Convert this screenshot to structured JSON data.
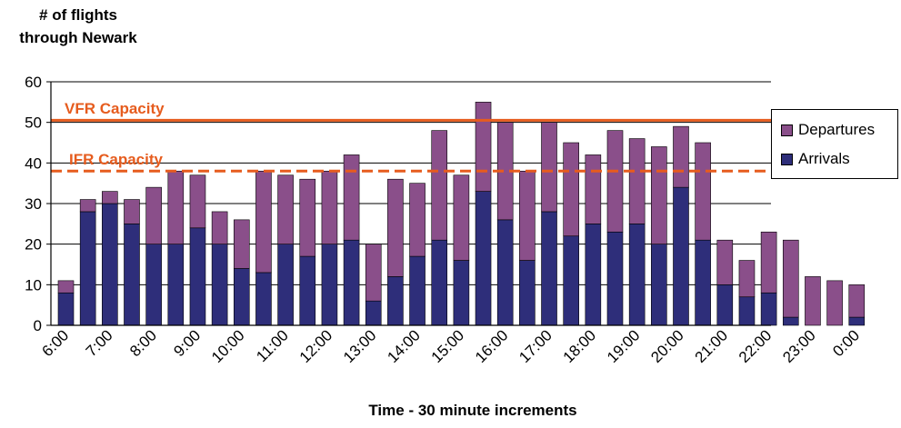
{
  "chart_data": {
    "type": "bar",
    "stacked": true,
    "title": "",
    "ylabel_lines": [
      "# of flights",
      "through Newark"
    ],
    "xlabel": "Time - 30 minute increments",
    "ylim": [
      0,
      60
    ],
    "yticks": [
      0,
      10,
      20,
      30,
      40,
      50,
      60
    ],
    "grid": true,
    "legend_position": "right",
    "tick_labels": [
      "6:00",
      "7:00",
      "8:00",
      "9:00",
      "10:00",
      "11:00",
      "12:00",
      "13:00",
      "14:00",
      "15:00",
      "16:00",
      "17:00",
      "18:00",
      "19:00",
      "20:00",
      "21:00",
      "22:00",
      "23:00",
      "0:00"
    ],
    "series": [
      {
        "name": "Arrivals",
        "color": "#2e2e7a",
        "values": [
          8,
          28,
          30,
          25,
          20,
          20,
          24,
          20,
          14,
          13,
          20,
          17,
          20,
          21,
          6,
          12,
          17,
          21,
          16,
          33,
          26,
          16,
          28,
          22,
          25,
          23,
          25,
          20,
          34,
          21,
          10,
          7,
          8,
          2,
          0,
          0,
          2
        ]
      },
      {
        "name": "Departures",
        "color": "#8a4f8a",
        "values": [
          3,
          3,
          3,
          6,
          14,
          18,
          13,
          8,
          12,
          25,
          17,
          19,
          18,
          21,
          14,
          24,
          18,
          27,
          21,
          22,
          24,
          22,
          22,
          23,
          17,
          25,
          21,
          24,
          15,
          24,
          11,
          9,
          15,
          19,
          12,
          11,
          8
        ]
      }
    ],
    "reference_lines": [
      {
        "name": "VFR Capacity",
        "value": 50.5,
        "style": "solid",
        "color": "#e65c1e"
      },
      {
        "name": "IFR Capacity",
        "value": 38,
        "style": "dashed",
        "color": "#e65c1e"
      }
    ]
  }
}
